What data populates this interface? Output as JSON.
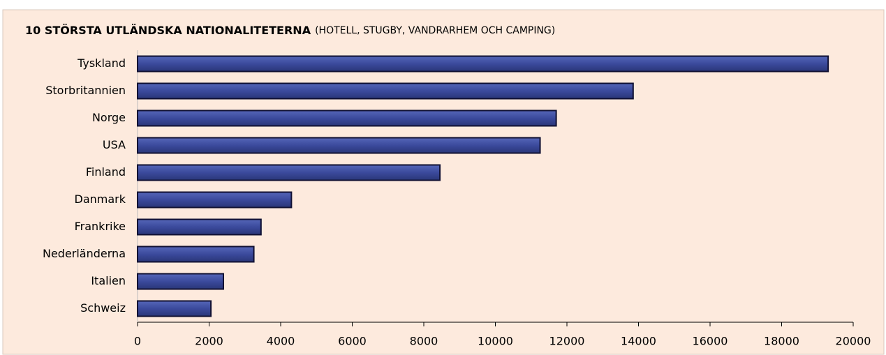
{
  "chart_data": {
    "type": "bar",
    "orientation": "horizontal",
    "title": "10 STÖRSTA UTLÄNDSKA NATIONALITETERNA",
    "subtitle": "(HOTELL, STUGBY, VANDRARHEM OCH CAMPING)",
    "categories": [
      "Tyskland",
      "Storbritannien",
      "Norge",
      "USA",
      "Finland",
      "Danmark",
      "Frankrike",
      "Nederländerna",
      "Italien",
      "Schweiz"
    ],
    "values": [
      19300,
      13850,
      11700,
      11250,
      8450,
      4300,
      3450,
      3250,
      2400,
      2050
    ],
    "color": "#3b4a9c",
    "xlim": [
      0,
      20000
    ],
    "xticks": [
      0,
      2000,
      4000,
      6000,
      8000,
      10000,
      12000,
      14000,
      16000,
      18000,
      20000
    ]
  }
}
